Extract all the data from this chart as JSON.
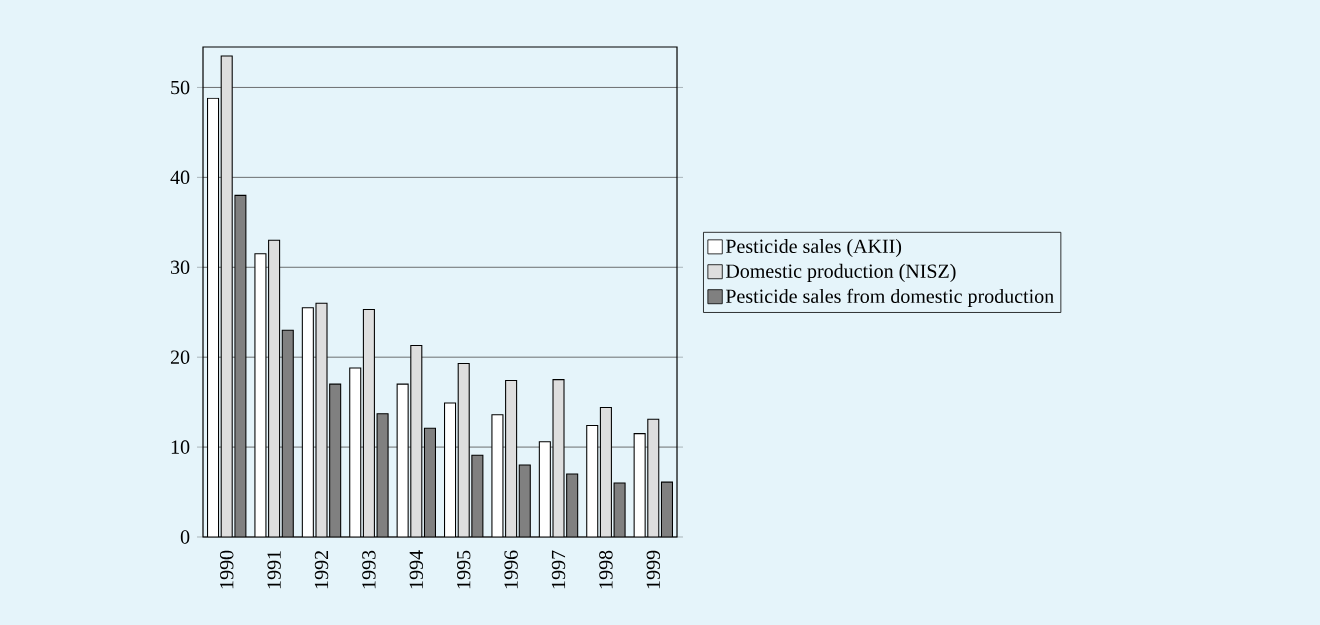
{
  "chart_data": {
    "type": "bar",
    "categories": [
      "1990",
      "1991",
      "1992",
      "1993",
      "1994",
      "1995",
      "1996",
      "1997",
      "1998",
      "1999"
    ],
    "series": [
      {
        "name": "Pesticide sales (AKII)",
        "color": "#ffffff",
        "values": [
          48.8,
          31.5,
          25.5,
          18.8,
          17,
          14.9,
          13.6,
          10.6,
          12.4,
          11.5
        ]
      },
      {
        "name": "Domestic production (NISZ)",
        "color": "#dedede",
        "values": [
          53.5,
          33,
          26,
          25.3,
          21.3,
          19.3,
          17.4,
          17.5,
          14.4,
          13.1
        ]
      },
      {
        "name": "Pesticide sales from domestic production",
        "color": "#808080",
        "values": [
          38,
          23,
          17,
          13.7,
          12.1,
          9.1,
          8,
          7,
          6,
          6.1
        ]
      }
    ],
    "ylim": [
      0,
      54.5
    ],
    "yticks": [
      0,
      10,
      20,
      30,
      40,
      50
    ],
    "grid": "y",
    "legend": "right"
  }
}
